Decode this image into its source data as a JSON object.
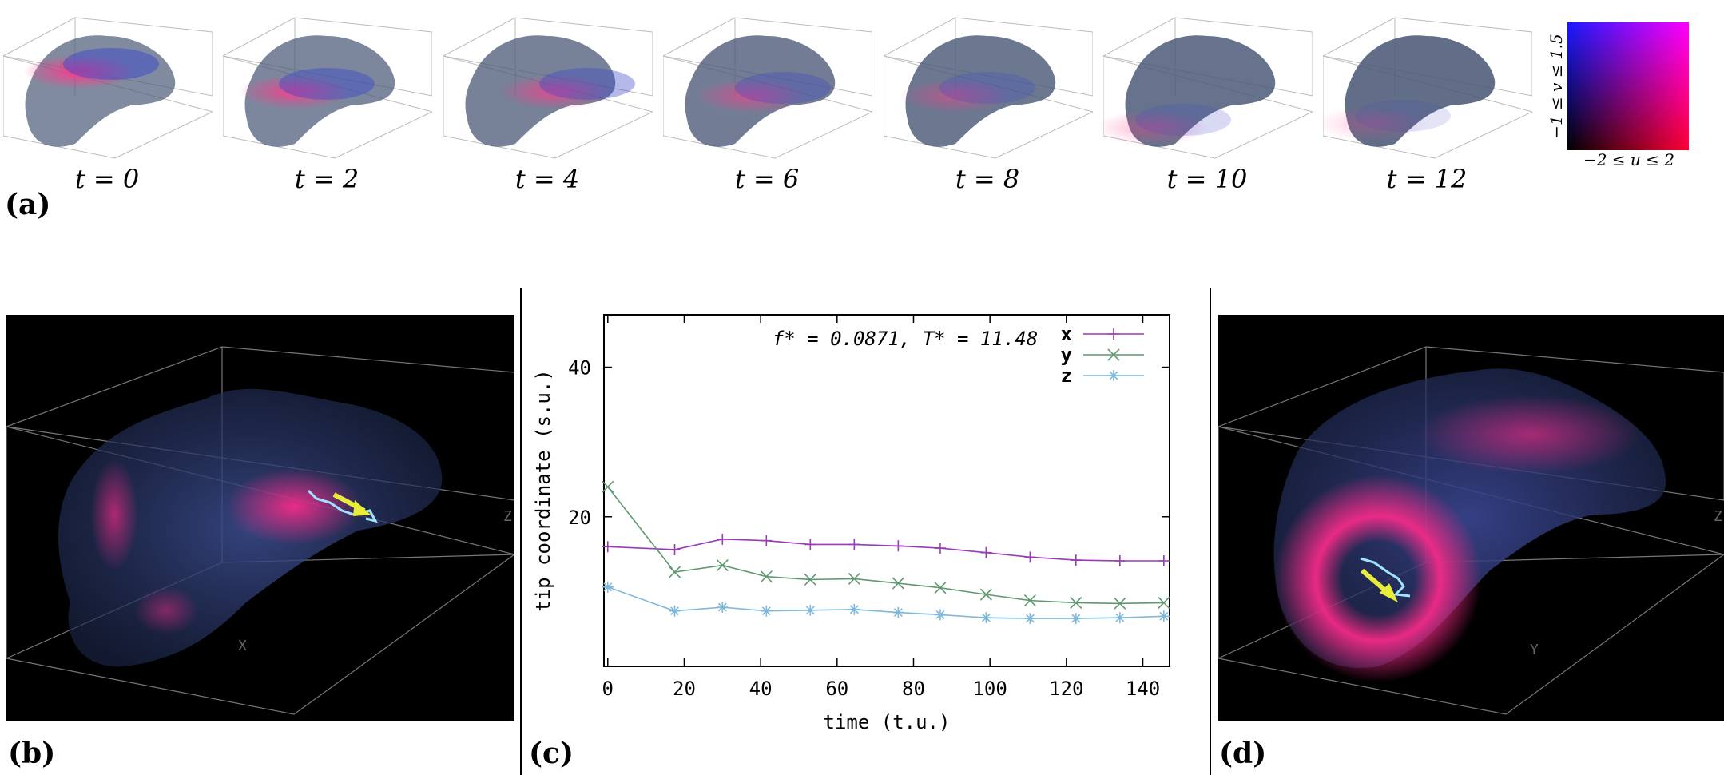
{
  "panels": {
    "a": "(a)",
    "b": "(b)",
    "c": "(c)",
    "d": "(d)"
  },
  "snapshots": [
    {
      "time": "t = 0"
    },
    {
      "time": "t = 2"
    },
    {
      "time": "t = 4"
    },
    {
      "time": "t = 6"
    },
    {
      "time": "t = 8"
    },
    {
      "time": "t = 10"
    },
    {
      "time": "t = 12"
    }
  ],
  "colorbar": {
    "u_label": "−2 ≤ u ≤ 2",
    "v_label": "−1 ≤ v ≤ 1.5",
    "colors": {
      "top_left": "#1a1aff",
      "top_right": "#ff00ff",
      "bottom_left": "#000000",
      "bottom_right": "#ff0033"
    }
  },
  "view_b": {
    "axis_x": "X",
    "axis_z": "Z"
  },
  "view_d": {
    "axis_y": "Y",
    "axis_z": "Z"
  },
  "chart_data": {
    "type": "line",
    "title": "",
    "annotation": "f* = 0.0871, T* = 11.48",
    "xlabel": "time (t.u.)",
    "ylabel": "tip coordinate (s.u.)",
    "xlim": [
      -1,
      147
    ],
    "ylim": [
      0,
      47
    ],
    "xticks": [
      0,
      20,
      40,
      60,
      80,
      100,
      120,
      140
    ],
    "yticks": [
      20,
      40
    ],
    "x": [
      0,
      17.5,
      30,
      41.5,
      53,
      64.5,
      76,
      87,
      99,
      110.5,
      122.5,
      134,
      145.5
    ],
    "series": [
      {
        "name": "x",
        "marker": "+",
        "color": "#9a3ab8",
        "values": [
          16.0,
          15.6,
          17.0,
          16.8,
          16.3,
          16.3,
          16.1,
          15.8,
          15.2,
          14.6,
          14.2,
          14.1,
          14.1
        ]
      },
      {
        "name": "y",
        "marker": "×",
        "color": "#5f9970",
        "values": [
          24.0,
          12.6,
          13.5,
          12.0,
          11.6,
          11.7,
          11.1,
          10.5,
          9.6,
          8.8,
          8.5,
          8.4,
          8.5
        ]
      },
      {
        "name": "z",
        "marker": "∗",
        "color": "#7eb9dc",
        "values": [
          10.6,
          7.4,
          7.9,
          7.4,
          7.5,
          7.6,
          7.2,
          6.9,
          6.5,
          6.4,
          6.4,
          6.5,
          6.7
        ]
      }
    ]
  }
}
